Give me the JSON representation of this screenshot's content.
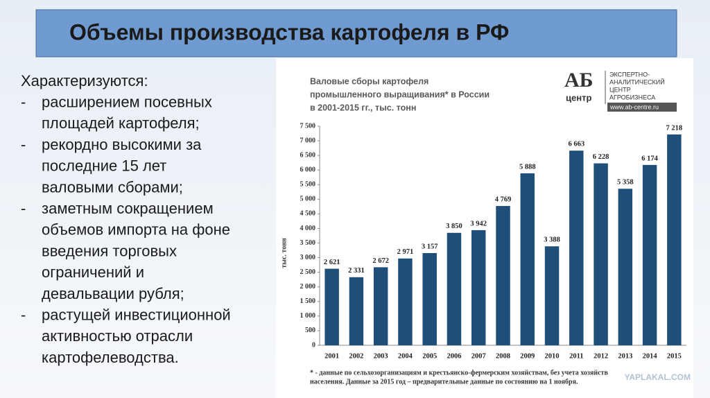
{
  "slide": {
    "title": "Объемы производства картофеля в РФ",
    "intro": "Характеризуются:",
    "bullets": [
      [
        "расширением посевных",
        "площадей картофеля;"
      ],
      [
        "рекордно высокими за",
        "последние 15 лет",
        "валовыми сборами;"
      ],
      [
        "заметным сокращением",
        "объемов импорта на фоне",
        "введения торговых",
        "ограничений и",
        "девальвации рубля;"
      ],
      [
        "растущей инвестиционной",
        "активностью отрасли",
        "картофелеводства."
      ]
    ],
    "logo": {
      "mark": "АБ",
      "sub": "центр",
      "lines": [
        "ЭКСПЕРТНО-",
        "АНАЛИТИЧЕСКИЙ",
        "ЦЕНТР",
        "АГРОБИЗНЕСА"
      ],
      "url": "www.ab-centre.ru"
    },
    "watermark": "YAPLAKAL.COM"
  },
  "chart_data": {
    "type": "bar",
    "title": [
      "Валовые сборы картофеля",
      "промышленного выращивания* в России",
      "в 2001-2015 гг., тыс. тонн"
    ],
    "y_label": "тыс. тонн",
    "categories": [
      "2001",
      "2002",
      "2003",
      "2004",
      "2005",
      "2006",
      "2007",
      "2008",
      "2009",
      "2010",
      "2011",
      "2012",
      "2013",
      "2014",
      "2015"
    ],
    "values": [
      2621,
      2331,
      2672,
      2971,
      3157,
      3850,
      3942,
      4769,
      5888,
      3388,
      6663,
      6228,
      5358,
      6174,
      7218
    ],
    "value_labels": [
      "2 621",
      "2 331",
      "2 672",
      "2 971",
      "3 157",
      "3 850",
      "3 942",
      "4 769",
      "5 888",
      "3 388",
      "6 663",
      "6 228",
      "5 358",
      "6 174",
      "7 218"
    ],
    "color": "#1f4e79",
    "ylim": [
      0,
      7500
    ],
    "yticks": [
      0,
      {
        "value": 500,
        "label": "500"
      },
      {
        "value": 1000,
        "label": "1 000"
      },
      {
        "value": 1500,
        "label": "1 500"
      },
      {
        "value": 2000,
        "label": "2 000"
      },
      {
        "value": 2500,
        "label": "2 500"
      },
      {
        "value": 3000,
        "label": "3 000"
      },
      {
        "value": 3500,
        "label": "3 500"
      },
      {
        "value": 4000,
        "label": "4 000"
      },
      {
        "value": 4500,
        "label": "4 500"
      },
      {
        "value": 5000,
        "label": "5 000"
      },
      {
        "value": 5500,
        "label": "5 500"
      },
      {
        "value": 6000,
        "label": "6 000"
      },
      {
        "value": 6500,
        "label": "6 500"
      },
      {
        "value": 7000,
        "label": "7 000"
      },
      {
        "value": 7500,
        "label": "7 500"
      }
    ],
    "grid": false,
    "footnote": [
      "* - данные по сельхозорганизациям и крестьянско-фермерским хозяйствам, без учета хозяйств",
      "населения. Данные за 2015 год – предварительные данные по состоянию на 1 ноября."
    ]
  }
}
